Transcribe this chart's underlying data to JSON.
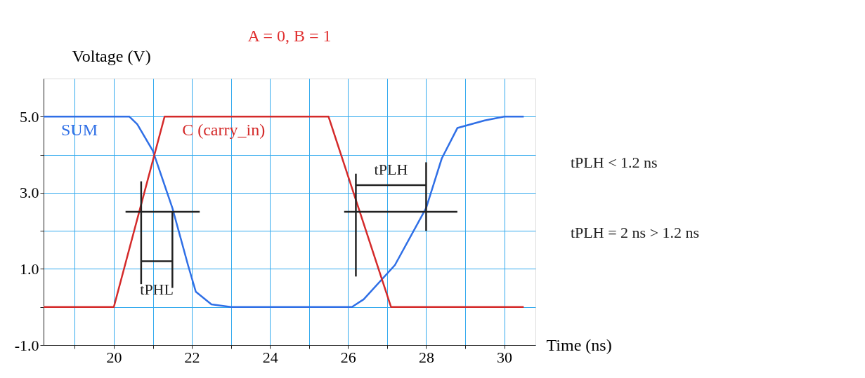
{
  "chart_data": {
    "type": "line",
    "title": "A = 0, B = 1",
    "xlabel": "Time (ns)",
    "ylabel": "Voltage (V)",
    "xlim": [
      18.2,
      30.8
    ],
    "ylim": [
      -1,
      6
    ],
    "xticks": [
      {
        "value": 19,
        "label": null
      },
      20,
      {
        "value": 21,
        "label": null
      },
      22,
      {
        "value": 23,
        "label": null
      },
      24,
      {
        "value": 25,
        "label": null
      },
      26,
      {
        "value": 27,
        "label": null
      },
      28,
      {
        "value": 29,
        "label": null
      },
      30
    ],
    "yticks": [
      {
        "value": -1,
        "label": "-1.0"
      },
      {
        "value": 0,
        "label": null
      },
      {
        "value": 1,
        "label": "1.0"
      },
      {
        "value": 2,
        "label": null
      },
      {
        "value": 3,
        "label": "3.0"
      },
      {
        "value": 4,
        "label": null
      },
      {
        "value": 5,
        "label": "5.0"
      }
    ],
    "grid": true,
    "legend": false,
    "line_style": "solid",
    "marker": "none",
    "series": [
      {
        "name": "SUM",
        "color": "#2f6fe6",
        "x": [
          18.2,
          20.4,
          20.6,
          21.0,
          21.5,
          21.9,
          22.1,
          22.5,
          23.0,
          26.1,
          26.4,
          27.2,
          28.0,
          28.4,
          28.8,
          29.5,
          30.0,
          30.5
        ],
        "values": [
          5.0,
          5.0,
          4.8,
          4.1,
          2.6,
          1.1,
          0.4,
          0.07,
          0.0,
          0.0,
          0.2,
          1.1,
          2.6,
          3.9,
          4.7,
          4.9,
          5.0,
          5.0
        ]
      },
      {
        "name": "C (carry_in)",
        "color": "#d42a2a",
        "x": [
          18.2,
          20.0,
          21.3,
          25.5,
          27.1,
          30.5
        ],
        "values": [
          0.0,
          0.0,
          5.0,
          5.0,
          0.0,
          0.0
        ]
      },
      {
        "color": "#222222",
        "x": [
          20.3,
          22.2
        ],
        "values": [
          2.5,
          2.5
        ]
      },
      {
        "color": "#222222",
        "x": [
          20.7,
          20.7
        ],
        "values": [
          3.3,
          0.6
        ]
      },
      {
        "color": "#222222",
        "x": [
          21.5,
          21.5
        ],
        "values": [
          2.5,
          0.5
        ]
      },
      {
        "color": "#222222",
        "x": [
          20.7,
          21.5
        ],
        "values": [
          1.2,
          1.2
        ]
      },
      {
        "color": "#222222",
        "x": [
          25.9,
          28.8
        ],
        "values": [
          2.5,
          2.5
        ]
      },
      {
        "color": "#222222",
        "x": [
          26.2,
          26.2
        ],
        "values": [
          3.5,
          0.8
        ]
      },
      {
        "color": "#222222",
        "x": [
          28.0,
          28.0
        ],
        "values": [
          3.8,
          2.0
        ]
      },
      {
        "color": "#222222",
        "x": [
          26.2,
          28.0
        ],
        "values": [
          3.2,
          3.2
        ]
      }
    ],
    "annotations": [
      {
        "text": "tPHL",
        "x": 21.1,
        "y": 1.2
      },
      {
        "text": "tPLH",
        "x": 27.1,
        "y": 3.2
      },
      "tPLH < 1.2 ns",
      "tPLH = 2 ns > 1.2 ns"
    ]
  }
}
